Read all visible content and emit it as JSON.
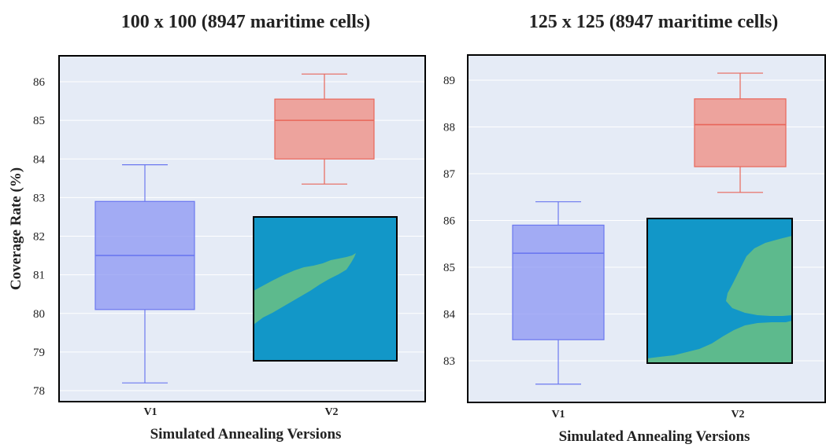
{
  "chart_data": [
    {
      "type": "box",
      "title": "100 x 100 (8947 maritime cells)",
      "xlabel": "Simulated Annealing Versions",
      "ylabel": "Coverage Rate (%)",
      "ylim": [
        77.8,
        86.6
      ],
      "yticks": [
        78,
        79,
        80,
        81,
        82,
        83,
        84,
        85,
        86
      ],
      "categories": [
        "V1",
        "V2"
      ],
      "grid": true,
      "series": [
        {
          "category": "V1",
          "min": 78.2,
          "q1": 80.1,
          "median": 81.5,
          "q3": 82.9,
          "max": 83.85,
          "color": "#8b96f3"
        },
        {
          "category": "V2",
          "min": 83.35,
          "q1": 84.0,
          "median": 85.0,
          "q3": 85.55,
          "max": 86.2,
          "color": "#ef8b7f"
        }
      ],
      "inset": {
        "description": "map",
        "sea_color": "#1297c8",
        "land_color": "#5dba8d"
      }
    },
    {
      "type": "box",
      "title": "125 x 125 (8947 maritime cells)",
      "xlabel": "Simulated Annealing Versions",
      "ylabel": "",
      "ylim": [
        82.1,
        89.3
      ],
      "yticks": [
        83,
        84,
        85,
        86,
        87,
        88,
        89
      ],
      "categories": [
        "V1",
        "V2"
      ],
      "grid": true,
      "series": [
        {
          "category": "V1",
          "min": 82.5,
          "q1": 83.45,
          "median": 85.3,
          "q3": 85.9,
          "max": 86.4,
          "color": "#8b96f3"
        },
        {
          "category": "V2",
          "min": 86.6,
          "q1": 87.15,
          "median": 88.05,
          "q3": 88.6,
          "max": 89.15,
          "color": "#ef8b7f"
        }
      ],
      "inset": {
        "description": "map",
        "sea_color": "#1297c8",
        "land_color": "#5dba8d"
      }
    }
  ],
  "colors": {
    "plot_bg": "#e5ebf6",
    "grid": "#ffffff",
    "v1_edge": "#6b77ef",
    "v2_edge": "#e8665a"
  }
}
